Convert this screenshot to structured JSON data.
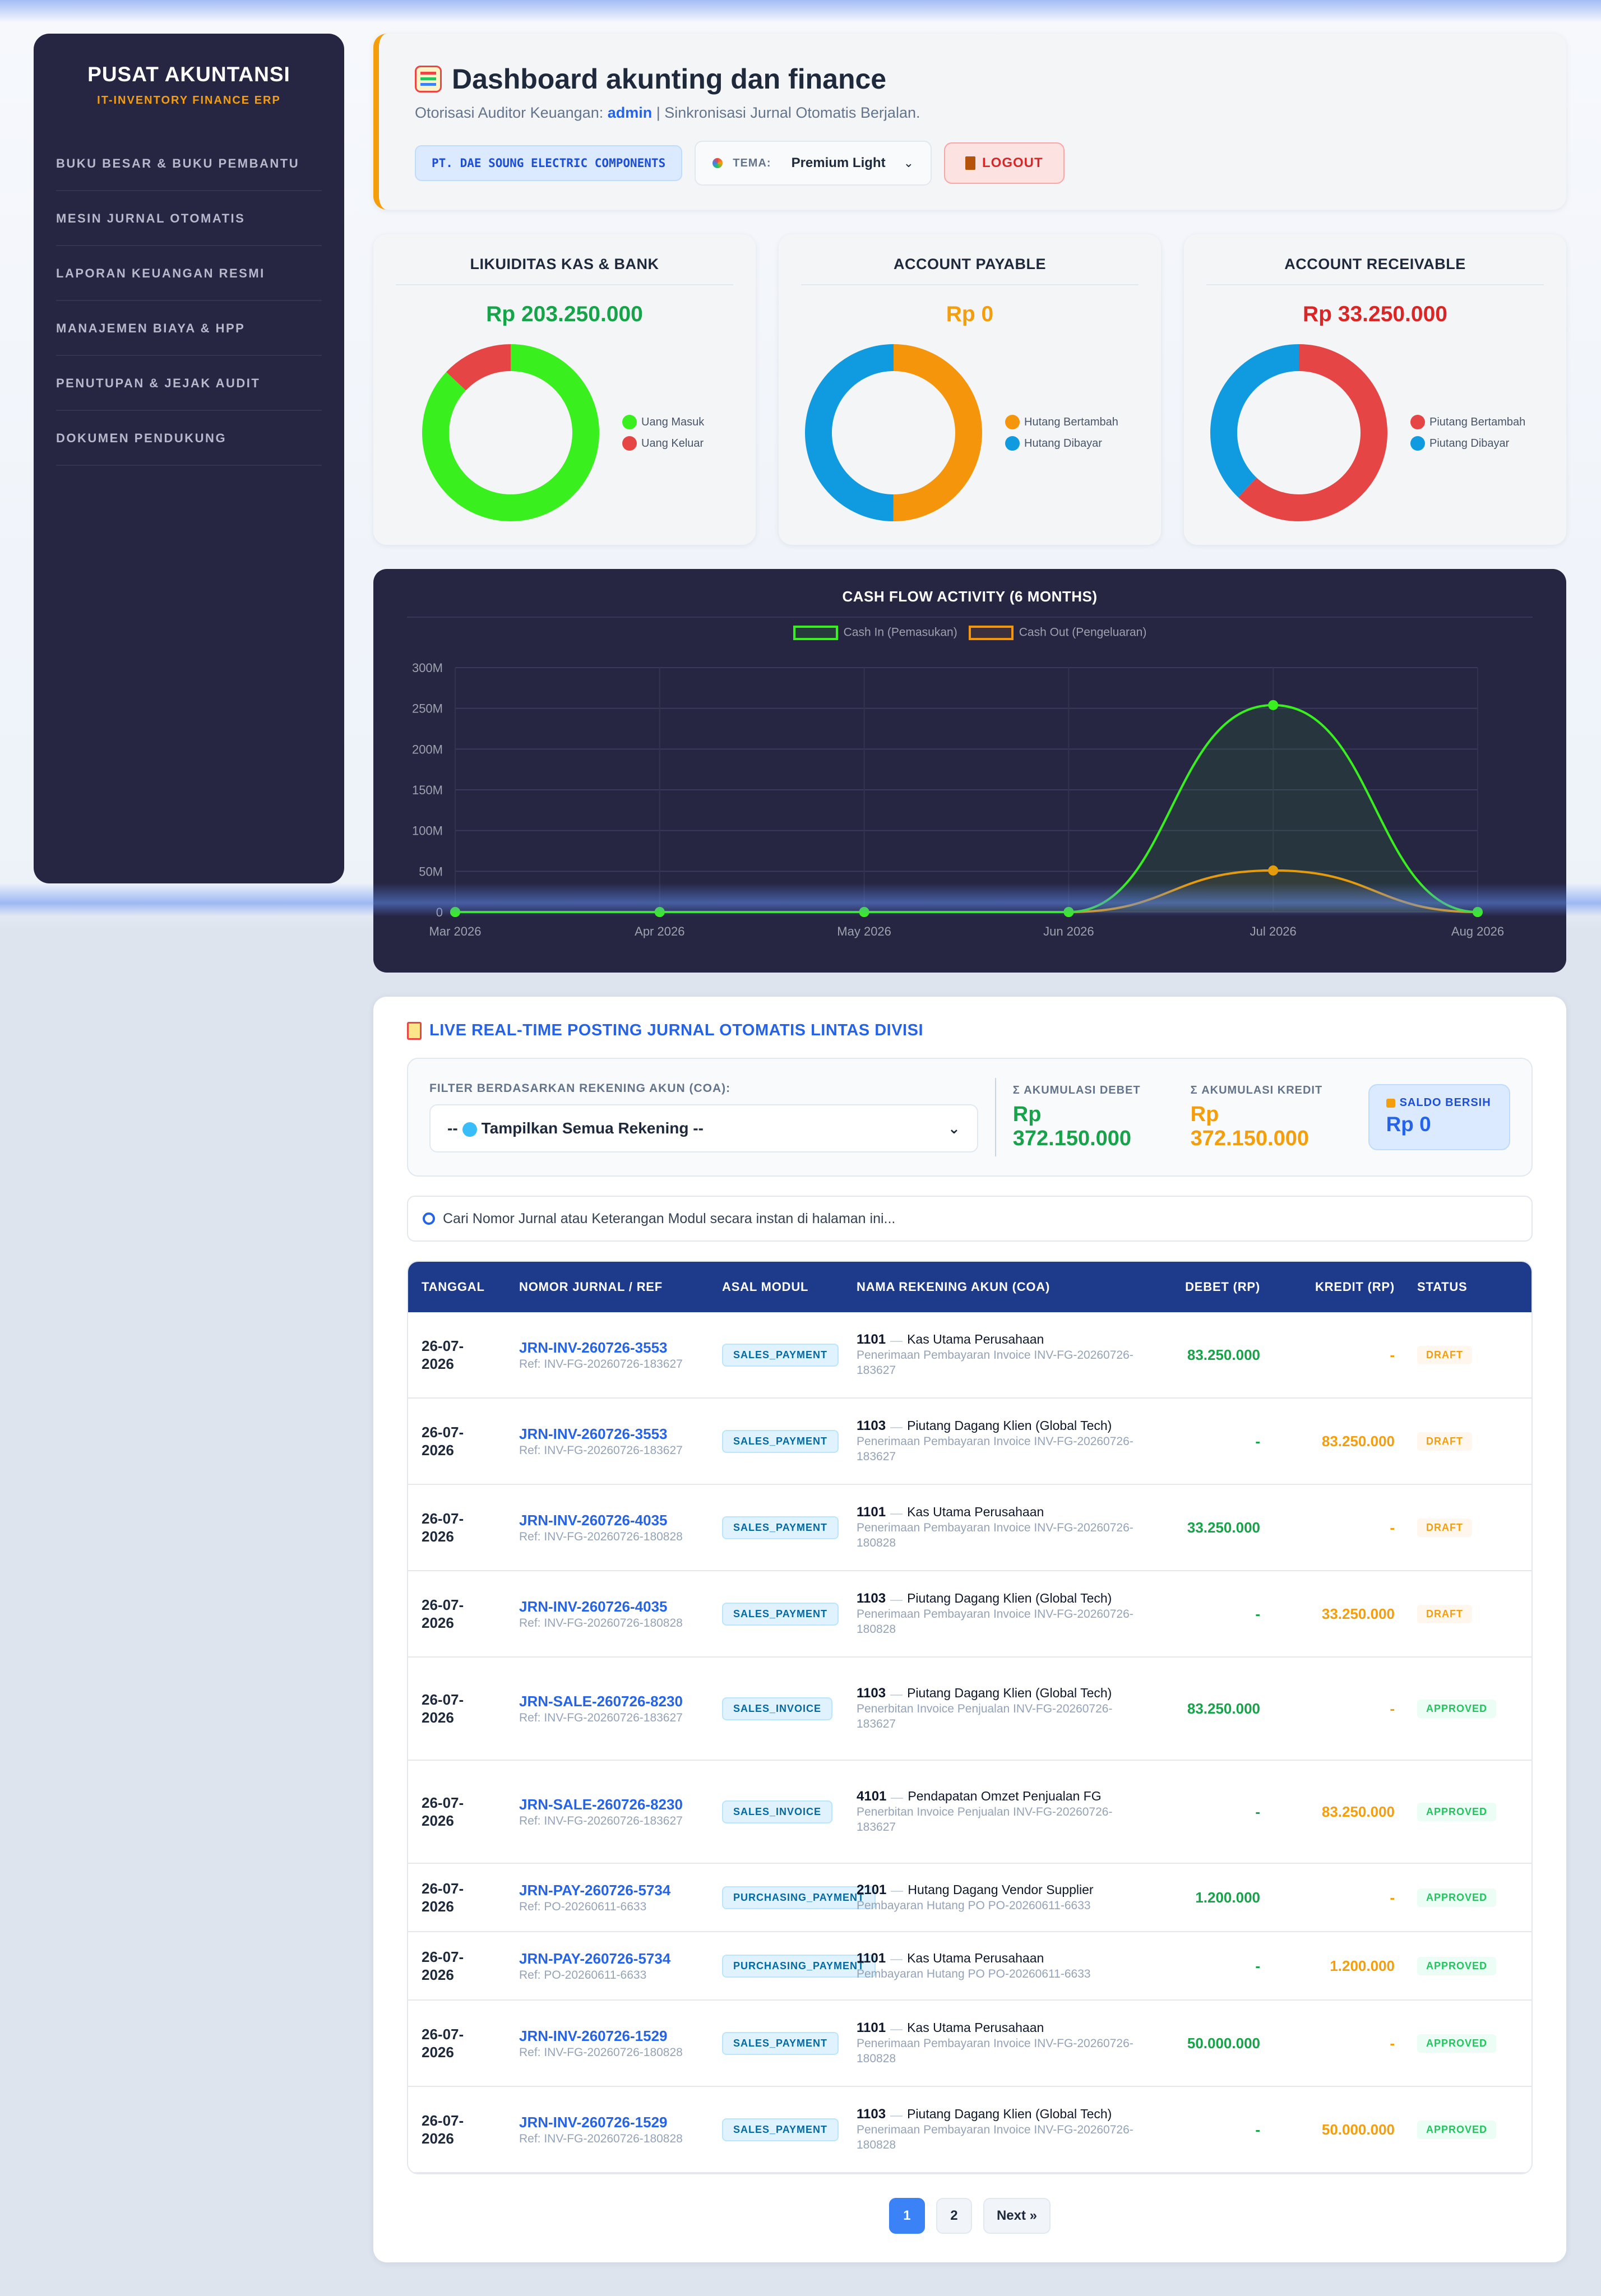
{
  "sidebar": {
    "title": "PUSAT AKUNTANSI",
    "subtitle": "IT-INVENTORY FINANCE ERP",
    "items": [
      {
        "label": "BUKU BESAR & BUKU PEMBANTU"
      },
      {
        "label": "MESIN JURNAL OTOMATIS"
      },
      {
        "label": "LAPORAN KEUANGAN RESMI"
      },
      {
        "label": "MANAJEMEN BIAYA & HPP"
      },
      {
        "label": "PENUTUPAN & JEJAK AUDIT"
      },
      {
        "label": "DOKUMEN PENDUKUNG"
      }
    ]
  },
  "header": {
    "title": "Dashboard akunting dan finance",
    "subtitle_prefix": "Otorisasi Auditor Keuangan:",
    "user": "admin",
    "subtitle_suffix": "| Sinkronisasi Jurnal Otomatis Berjalan.",
    "company": "PT. DAE SOUNG ELECTRIC COMPONENTS",
    "theme_label": "TEMA:",
    "theme_value": "Premium Light",
    "logout_label": "LOGOUT"
  },
  "kpis": {
    "cash": {
      "title": "LIKUIDITAS KAS & BANK",
      "value": "Rp 203.250.000",
      "value_color": "#16a34a",
      "legend": [
        "Uang Masuk",
        "Uang Keluar"
      ],
      "colors": [
        "#39f01e",
        "#e64545"
      ],
      "shares": [
        0.87,
        0.13
      ]
    },
    "payable": {
      "title": "ACCOUNT PAYABLE",
      "value": "Rp 0",
      "value_color": "#f59e0b",
      "legend": [
        "Hutang Bertambah",
        "Hutang Dibayar"
      ],
      "colors": [
        "#f5950b",
        "#109be0"
      ],
      "shares": [
        0.5,
        0.5
      ]
    },
    "receivable": {
      "title": "ACCOUNT RECEIVABLE",
      "value": "Rp 33.250.000",
      "value_color": "#dc2626",
      "legend": [
        "Piutang Bertambah",
        "Piutang Dibayar"
      ],
      "colors": [
        "#e64545",
        "#109be0"
      ],
      "shares": [
        0.62,
        0.38
      ]
    }
  },
  "chart_data": {
    "type": "line",
    "title": "CASH FLOW ACTIVITY (6 MONTHS)",
    "categories": [
      "Mar 2026",
      "Apr 2026",
      "May 2026",
      "Jun 2026",
      "Jul 2026",
      "Aug 2026"
    ],
    "series": [
      {
        "name": "Cash In (Pemasukan)",
        "values": [
          0,
          0,
          0,
          0,
          254000000,
          0
        ],
        "color": "#39f01e"
      },
      {
        "name": "Cash Out (Pengeluaran)",
        "values": [
          0,
          0,
          0,
          0,
          51000000,
          0
        ],
        "color": "#f5950b"
      }
    ],
    "yticks": [
      "0",
      "50M",
      "100M",
      "150M",
      "200M",
      "250M",
      "300M"
    ],
    "ylim": [
      0,
      300000000
    ],
    "grid": true,
    "legend": "top-center"
  },
  "journal": {
    "title": "LIVE REAL-TIME POSTING JURNAL OTOMATIS LINTAS DIVISI",
    "filter_label": "FILTER BERDASARKAN REKENING AKUN (COA):",
    "filter_value_prefix": "--",
    "filter_value": "Tampilkan Semua Rekening --",
    "debet_label": "Σ AKUMULASI DEBET",
    "debet_value": "Rp 372.150.000",
    "kredit_label": "Σ AKUMULASI KREDIT",
    "kredit_value": "Rp 372.150.000",
    "saldo_label": "SALDO BERSIH",
    "saldo_value": "Rp 0",
    "search_placeholder": "Cari Nomor Jurnal atau Keterangan Modul secara instan di halaman ini...",
    "columns": [
      "TANGGAL",
      "NOMOR JURNAL / REF",
      "ASAL MODUL",
      "NAMA REKENING AKUN (COA)",
      "DEBET (RP)",
      "KREDIT (RP)",
      "STATUS"
    ],
    "rows": [
      {
        "date": "26-07-2026",
        "jrn": "JRN-INV-260726-3553",
        "ref": "Ref: INV-FG-20260726-183627",
        "module": "SALES_PAYMENT",
        "code": "1101",
        "account": "Kas Utama Perusahaan",
        "desc": "Penerimaan Pembayaran Invoice INV-FG-20260726-183627",
        "debet": "83.250.000",
        "kredit": "-",
        "status": "DRAFT"
      },
      {
        "date": "26-07-2026",
        "jrn": "JRN-INV-260726-3553",
        "ref": "Ref: INV-FG-20260726-183627",
        "module": "SALES_PAYMENT",
        "code": "1103",
        "account": "Piutang Dagang Klien (Global Tech)",
        "desc": "Penerimaan Pembayaran Invoice INV-FG-20260726-183627",
        "debet": "-",
        "kredit": "83.250.000",
        "status": "DRAFT"
      },
      {
        "date": "26-07-2026",
        "jrn": "JRN-INV-260726-4035",
        "ref": "Ref: INV-FG-20260726-180828",
        "module": "SALES_PAYMENT",
        "code": "1101",
        "account": "Kas Utama Perusahaan",
        "desc": "Penerimaan Pembayaran Invoice INV-FG-20260726-180828",
        "debet": "33.250.000",
        "kredit": "-",
        "status": "DRAFT"
      },
      {
        "date": "26-07-2026",
        "jrn": "JRN-INV-260726-4035",
        "ref": "Ref: INV-FG-20260726-180828",
        "module": "SALES_PAYMENT",
        "code": "1103",
        "account": "Piutang Dagang Klien (Global Tech)",
        "desc": "Penerimaan Pembayaran Invoice INV-FG-20260726-180828",
        "debet": "-",
        "kredit": "33.250.000",
        "status": "DRAFT"
      },
      {
        "date": "26-07-2026",
        "jrn": "JRN-SALE-260726-8230",
        "ref": "Ref: INV-FG-20260726-183627",
        "module": "SALES_INVOICE",
        "code": "1103",
        "account": "Piutang Dagang Klien (Global Tech)",
        "desc": "Penerbitan Invoice Penjualan INV-FG-20260726-183627",
        "debet": "83.250.000",
        "kredit": "-",
        "status": "APPROVED"
      },
      {
        "date": "26-07-2026",
        "jrn": "JRN-SALE-260726-8230",
        "ref": "Ref: INV-FG-20260726-183627",
        "module": "SALES_INVOICE",
        "code": "4101",
        "account": "Pendapatan Omzet Penjualan FG",
        "desc": "Penerbitan Invoice Penjualan INV-FG-20260726-183627",
        "debet": "-",
        "kredit": "83.250.000",
        "status": "APPROVED"
      },
      {
        "date": "26-07-2026",
        "jrn": "JRN-PAY-260726-5734",
        "ref": "Ref: PO-20260611-6633",
        "module": "PURCHASING_PAYMENT",
        "code": "2101",
        "account": "Hutang Dagang Vendor Supplier",
        "desc": "Pembayaran Hutang PO PO-20260611-6633",
        "debet": "1.200.000",
        "kredit": "-",
        "status": "APPROVED"
      },
      {
        "date": "26-07-2026",
        "jrn": "JRN-PAY-260726-5734",
        "ref": "Ref: PO-20260611-6633",
        "module": "PURCHASING_PAYMENT",
        "code": "1101",
        "account": "Kas Utama Perusahaan",
        "desc": "Pembayaran Hutang PO PO-20260611-6633",
        "debet": "-",
        "kredit": "1.200.000",
        "status": "APPROVED"
      },
      {
        "date": "26-07-2026",
        "jrn": "JRN-INV-260726-1529",
        "ref": "Ref: INV-FG-20260726-180828",
        "module": "SALES_PAYMENT",
        "code": "1101",
        "account": "Kas Utama Perusahaan",
        "desc": "Penerimaan Pembayaran Invoice INV-FG-20260726-180828",
        "debet": "50.000.000",
        "kredit": "-",
        "status": "APPROVED"
      },
      {
        "date": "26-07-2026",
        "jrn": "JRN-INV-260726-1529",
        "ref": "Ref: INV-FG-20260726-180828",
        "module": "SALES_PAYMENT",
        "code": "1103",
        "account": "Piutang Dagang Klien (Global Tech)",
        "desc": "Penerimaan Pembayaran Invoice INV-FG-20260726-180828",
        "debet": "-",
        "kredit": "50.000.000",
        "status": "APPROVED"
      }
    ],
    "pagination": {
      "pages": [
        "1",
        "2"
      ],
      "current": "1",
      "next": "Next »"
    }
  },
  "colors": {
    "accent": "#2563eb",
    "sidebar_bg": "#262542",
    "table_header": "#1e3a8a",
    "warning": "#f59e0b",
    "success": "#16a34a"
  }
}
